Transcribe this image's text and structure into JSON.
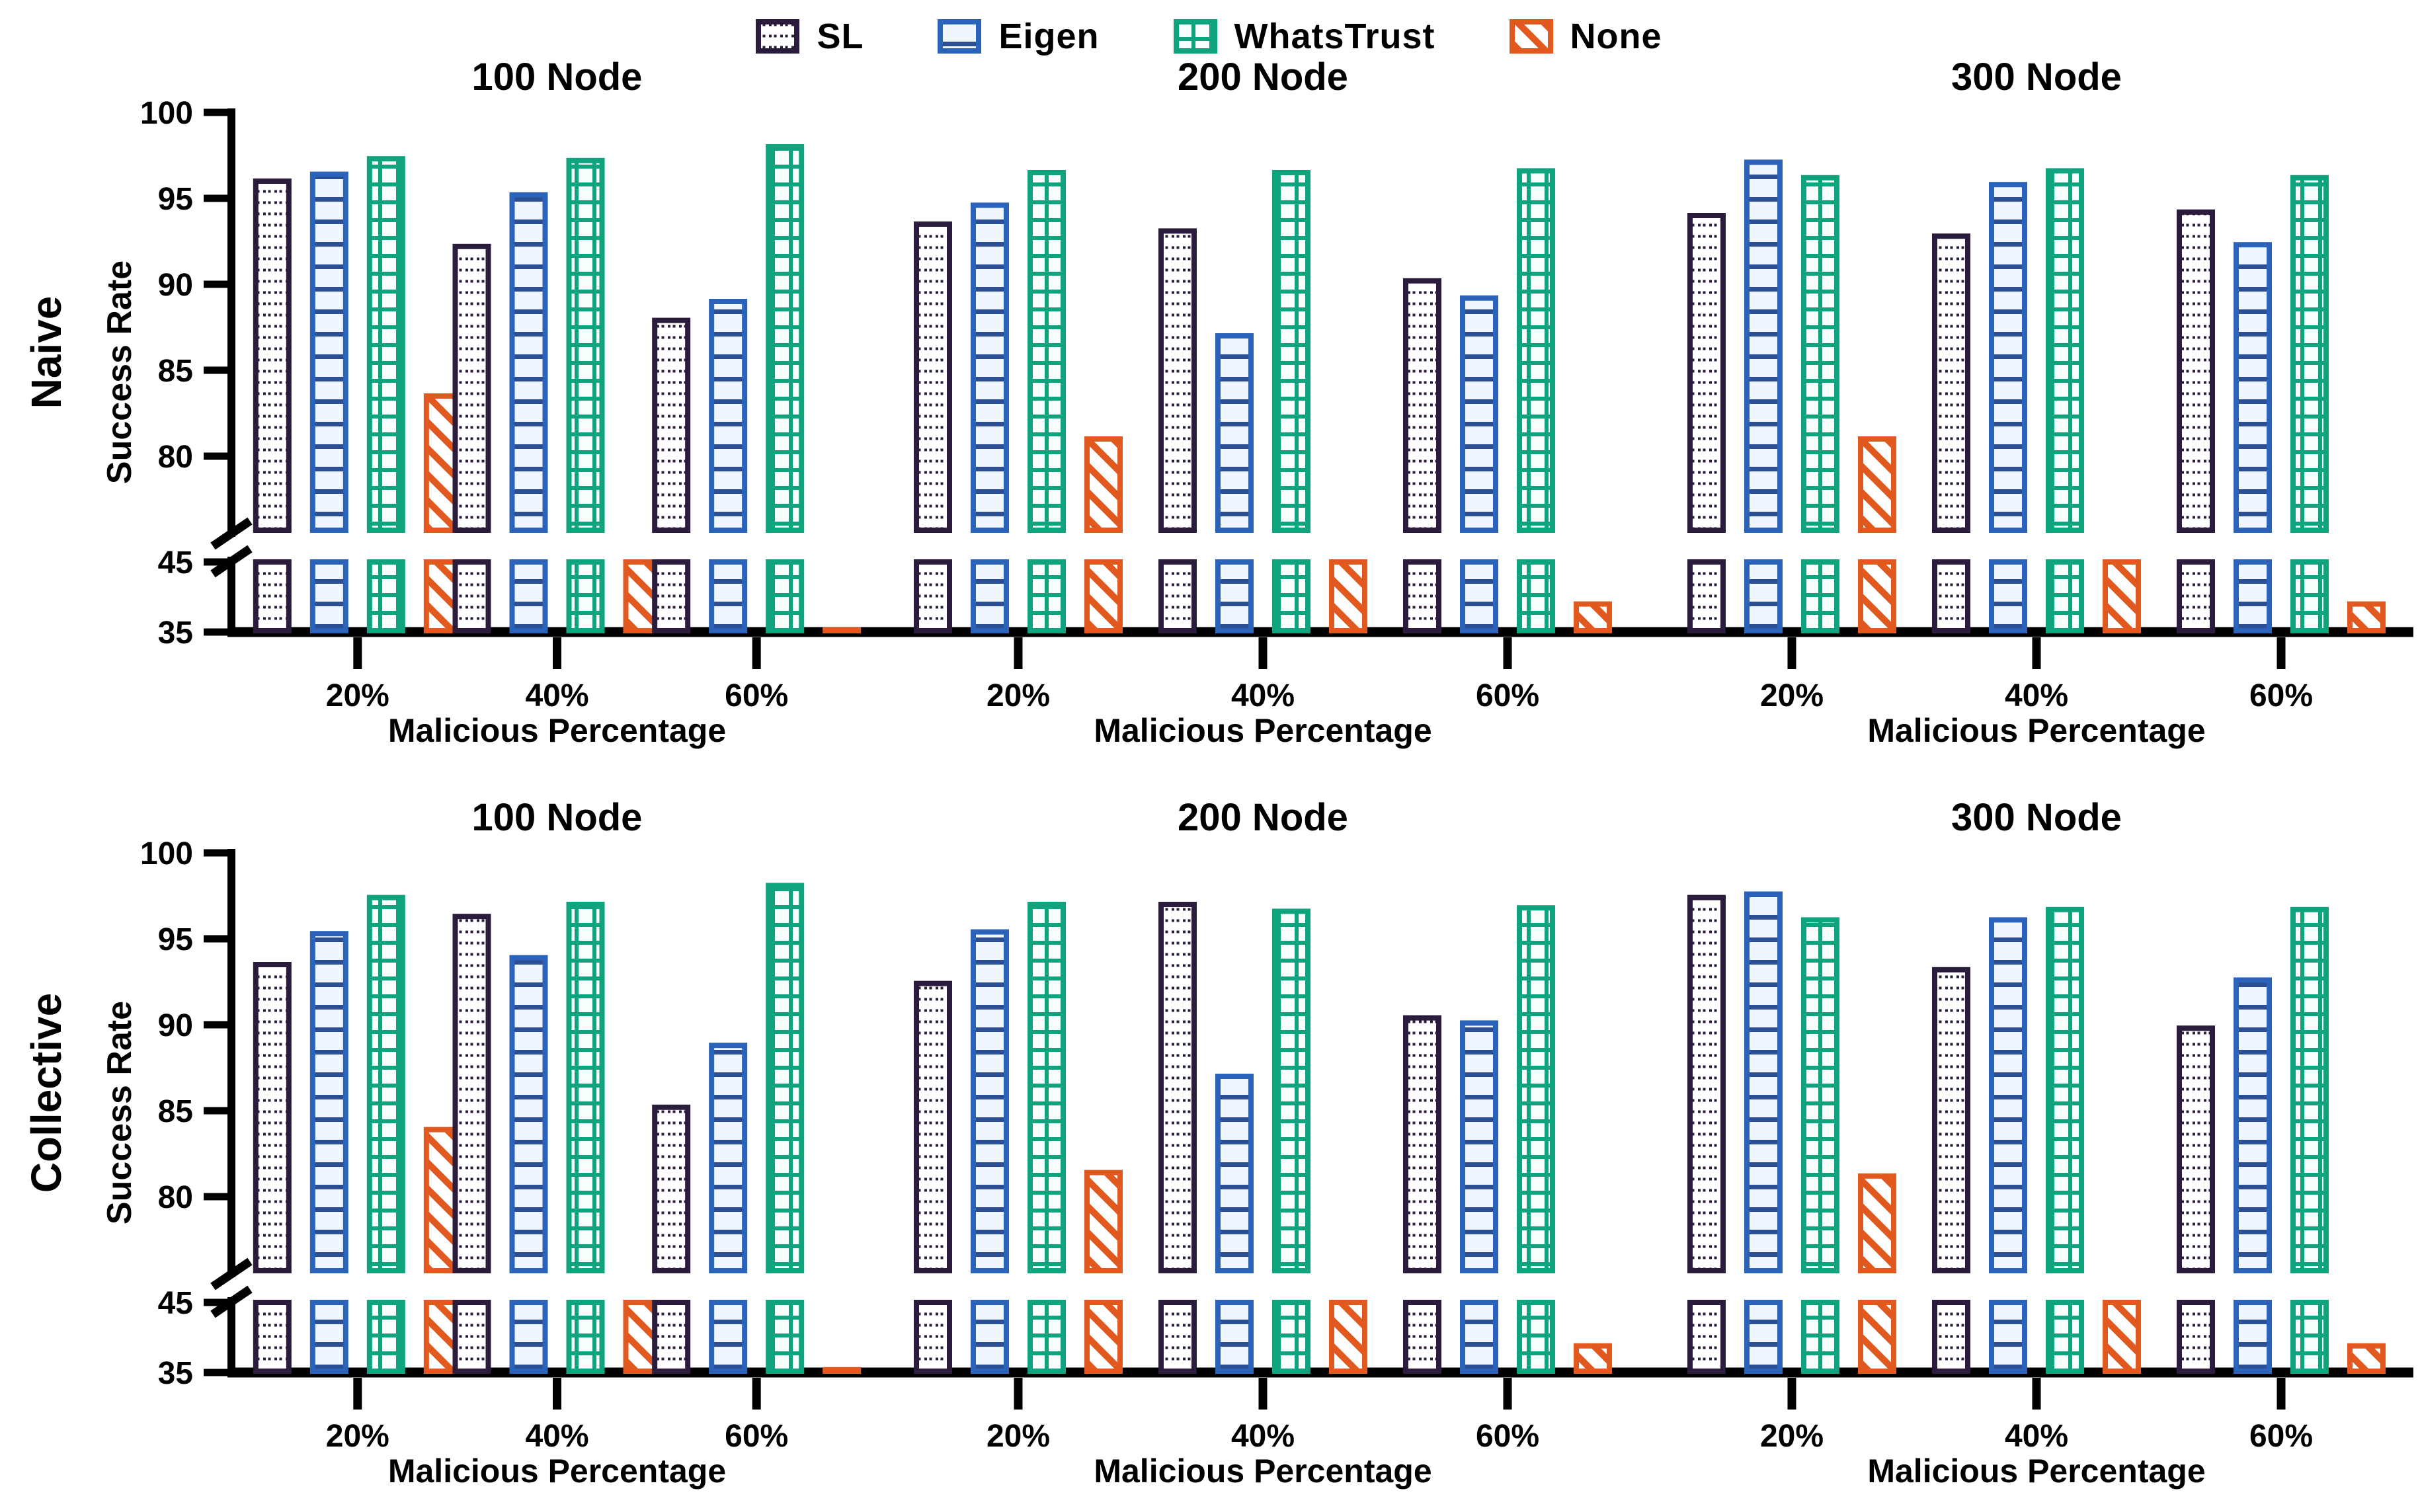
{
  "figure": {
    "rows": [
      "Naive",
      "Collective"
    ],
    "legend": [
      {
        "label": "SL",
        "pattern": "dots",
        "stroke": "#2b1c3d",
        "line": "#2b1c3d",
        "fill": "#ffffff"
      },
      {
        "label": "Eigen",
        "pattern": "hlines",
        "stroke": "#2c63ba",
        "line": "#2b4f92",
        "fill": "#f0f6fd"
      },
      {
        "label": "WhatsTrust",
        "pattern": "grid",
        "stroke": "#10a47e",
        "line": "#10a47e",
        "fill": "#f7fdfb"
      },
      {
        "label": "None",
        "pattern": "diag",
        "stroke": "#e2591f",
        "line": "#e2591f",
        "fill": "#ffffff"
      }
    ],
    "axis_color": "#000000",
    "text_color": "#000000"
  },
  "chart_data": [
    {
      "type": "bar",
      "panel": "Naive",
      "title": "100 Node",
      "categories": [
        "20%",
        "40%",
        "60%"
      ],
      "xlabel": "Malicious Percentage",
      "ylabel": "Success Rate",
      "ylim": [
        35,
        100
      ],
      "axis_break": [
        45,
        76
      ],
      "yticks_upper": [
        100,
        95,
        90,
        85,
        80
      ],
      "yticks_lower": [
        45,
        35
      ],
      "series": [
        {
          "name": "SL",
          "values": [
            96.0,
            92.2,
            87.9
          ]
        },
        {
          "name": "Eigen",
          "values": [
            96.4,
            95.2,
            89.0
          ]
        },
        {
          "name": "WhatsTrust",
          "values": [
            97.3,
            97.2,
            98.0
          ]
        },
        {
          "name": "None",
          "values": [
            83.5,
            45.0,
            35.3
          ]
        }
      ]
    },
    {
      "type": "bar",
      "panel": "Naive",
      "title": "200 Node",
      "categories": [
        "20%",
        "40%",
        "60%"
      ],
      "xlabel": "Malicious Percentage",
      "ylabel": "Success Rate",
      "ylim": [
        35,
        100
      ],
      "axis_break": [
        45,
        76
      ],
      "yticks_upper": [
        100,
        95,
        90,
        85,
        80
      ],
      "yticks_lower": [
        45,
        35
      ],
      "series": [
        {
          "name": "SL",
          "values": [
            93.5,
            93.1,
            90.2
          ]
        },
        {
          "name": "Eigen",
          "values": [
            94.6,
            87.0,
            89.2
          ]
        },
        {
          "name": "WhatsTrust",
          "values": [
            96.5,
            96.5,
            96.6
          ]
        },
        {
          "name": "None",
          "values": [
            81.0,
            45.0,
            39.0
          ]
        }
      ]
    },
    {
      "type": "bar",
      "panel": "Naive",
      "title": "300 Node",
      "categories": [
        "20%",
        "40%",
        "60%"
      ],
      "xlabel": "Malicious Percentage",
      "ylabel": "Success Rate",
      "ylim": [
        35,
        100
      ],
      "axis_break": [
        45,
        76
      ],
      "yticks_upper": [
        100,
        95,
        90,
        85,
        80
      ],
      "yticks_lower": [
        45,
        35
      ],
      "series": [
        {
          "name": "SL",
          "values": [
            94.0,
            92.8,
            94.2
          ]
        },
        {
          "name": "Eigen",
          "values": [
            97.1,
            95.8,
            92.3
          ]
        },
        {
          "name": "WhatsTrust",
          "values": [
            96.2,
            96.6,
            96.2
          ]
        },
        {
          "name": "None",
          "values": [
            81.0,
            45.0,
            39.0
          ]
        }
      ]
    },
    {
      "type": "bar",
      "panel": "Collective",
      "title": "100 Node",
      "categories": [
        "20%",
        "40%",
        "60%"
      ],
      "xlabel": "Malicious Percentage",
      "ylabel": "Success Rate",
      "ylim": [
        35,
        100
      ],
      "axis_break": [
        45,
        76
      ],
      "yticks_upper": [
        100,
        95,
        90,
        85,
        80
      ],
      "yticks_lower": [
        45,
        35
      ],
      "series": [
        {
          "name": "SL",
          "values": [
            93.5,
            96.3,
            85.2
          ]
        },
        {
          "name": "Eigen",
          "values": [
            95.3,
            93.9,
            88.8
          ]
        },
        {
          "name": "WhatsTrust",
          "values": [
            97.4,
            97.0,
            98.1
          ]
        },
        {
          "name": "None",
          "values": [
            83.9,
            45.0,
            35.4
          ]
        }
      ]
    },
    {
      "type": "bar",
      "panel": "Collective",
      "title": "200 Node",
      "categories": [
        "20%",
        "40%",
        "60%"
      ],
      "xlabel": "Malicious Percentage",
      "ylabel": "Success Rate",
      "ylim": [
        35,
        100
      ],
      "axis_break": [
        45,
        76
      ],
      "yticks_upper": [
        100,
        95,
        90,
        85,
        80
      ],
      "yticks_lower": [
        45,
        35
      ],
      "series": [
        {
          "name": "SL",
          "values": [
            92.4,
            97.0,
            90.4
          ]
        },
        {
          "name": "Eigen",
          "values": [
            95.4,
            87.0,
            90.1
          ]
        },
        {
          "name": "WhatsTrust",
          "values": [
            97.0,
            96.6,
            96.8
          ]
        },
        {
          "name": "None",
          "values": [
            81.4,
            45.0,
            38.8
          ]
        }
      ]
    },
    {
      "type": "bar",
      "panel": "Collective",
      "title": "300 Node",
      "categories": [
        "20%",
        "40%",
        "60%"
      ],
      "xlabel": "Malicious Percentage",
      "ylabel": "Success Rate",
      "ylim": [
        35,
        100
      ],
      "axis_break": [
        45,
        76
      ],
      "yticks_upper": [
        100,
        95,
        90,
        85,
        80
      ],
      "yticks_lower": [
        45,
        35
      ],
      "series": [
        {
          "name": "SL",
          "values": [
            97.4,
            93.2,
            89.8
          ]
        },
        {
          "name": "Eigen",
          "values": [
            97.6,
            96.1,
            92.6
          ]
        },
        {
          "name": "WhatsTrust",
          "values": [
            96.1,
            96.7,
            96.7
          ]
        },
        {
          "name": "None",
          "values": [
            81.2,
            45.0,
            38.8
          ]
        }
      ]
    }
  ]
}
